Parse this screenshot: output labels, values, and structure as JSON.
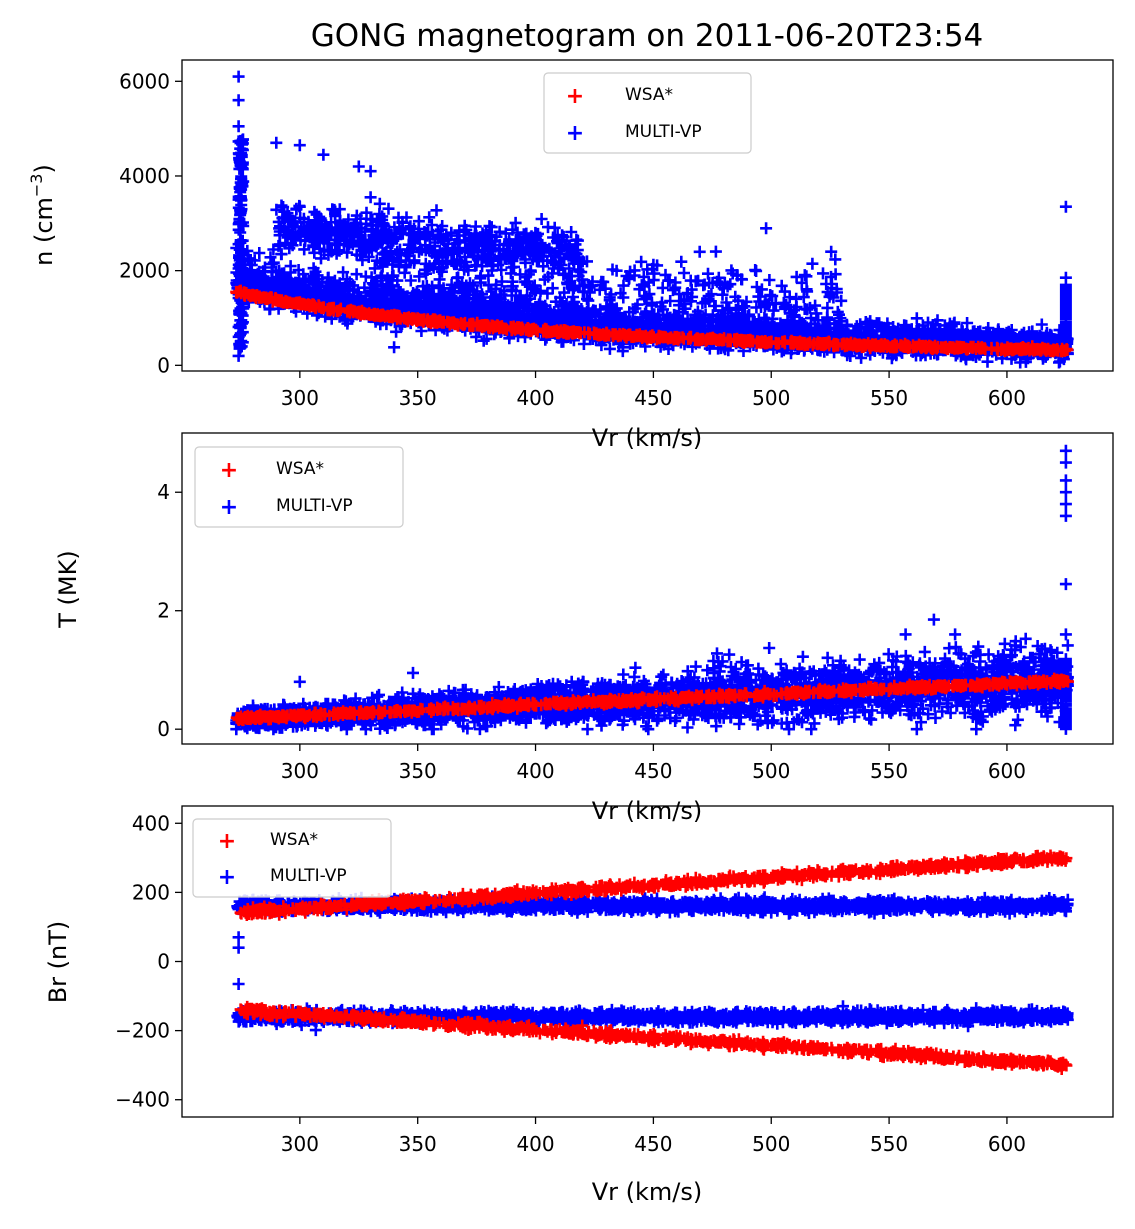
{
  "figure_title": "GONG magnetogram on 2011-06-20T23:54",
  "colors": {
    "wsa": "#ff0000",
    "multivp": "#0000ff"
  },
  "chart_data": [
    {
      "type": "scatter",
      "title": "GONG magnetogram on 2011-06-20T23:54",
      "xlabel": "Vr (km/s)",
      "ylabel_main": "n (cm",
      "ylabel_sup": "−3",
      "ylabel_close": ")",
      "xlim": [
        250,
        645
      ],
      "ylim": [
        -120,
        6450
      ],
      "xticks": [
        300,
        350,
        400,
        450,
        500,
        550,
        600
      ],
      "xtick_labels": [
        "300",
        "350",
        "400",
        "450",
        "500",
        "550",
        "600"
      ],
      "yticks": [
        0,
        2000,
        4000,
        6000
      ],
      "ytick_labels": [
        "0",
        "2000",
        "4000",
        "6000"
      ],
      "legend_position": "top-center",
      "series": [
        {
          "name": "WSA*",
          "model": "n = 1550 * (273/Vr)^1.9",
          "x_range": [
            273,
            626
          ],
          "values_sample": [
            [
              275,
              1550
            ],
            [
              350,
              980
            ],
            [
              450,
              600
            ],
            [
              550,
              410
            ],
            [
              625,
              300
            ]
          ]
        },
        {
          "name": "MULTI-VP",
          "outliers": [
            [
              274,
              6100
            ],
            [
              274,
              5600
            ],
            [
              274,
              5050
            ],
            [
              290,
              4700
            ],
            [
              300,
              4650
            ],
            [
              310,
              4450
            ],
            [
              325,
              4200
            ],
            [
              330,
              4100
            ],
            [
              330,
              3550
            ],
            [
              274,
              3500
            ],
            [
              300,
              3350
            ],
            [
              315,
              3250
            ],
            [
              400,
              2400
            ],
            [
              410,
              2350
            ],
            [
              463,
              1950
            ],
            [
              625,
              3350
            ],
            [
              625,
              1850
            ],
            [
              274,
              200
            ],
            [
              340,
              380
            ],
            [
              378,
              520
            ],
            [
              437,
              300
            ]
          ]
        }
      ]
    },
    {
      "type": "scatter",
      "xlabel": "Vr (km/s)",
      "ylabel": "T (MK)",
      "xlim": [
        250,
        645
      ],
      "ylim": [
        -0.25,
        5.0
      ],
      "xticks": [
        300,
        350,
        400,
        450,
        500,
        550,
        600
      ],
      "xtick_labels": [
        "300",
        "350",
        "400",
        "450",
        "500",
        "550",
        "600"
      ],
      "yticks": [
        0,
        2,
        4
      ],
      "ytick_labels": [
        "0",
        "2",
        "4"
      ],
      "legend_position": "top-left",
      "series": [
        {
          "name": "WSA*",
          "model": "T linear from 0.18 at Vr=273 to 0.82 at Vr=626",
          "values_sample": [
            [
              275,
              0.18
            ],
            [
              450,
              0.5
            ],
            [
              625,
              0.82
            ]
          ]
        },
        {
          "name": "MULTI-VP",
          "outliers": [
            [
              625,
              4.7
            ],
            [
              625,
              4.5
            ],
            [
              625,
              4.2
            ],
            [
              625,
              4.0
            ],
            [
              625,
              3.8
            ],
            [
              625,
              3.6
            ],
            [
              625,
              2.45
            ],
            [
              625,
              1.6
            ],
            [
              569,
              1.85
            ],
            [
              557,
              1.6
            ],
            [
              578,
              1.6
            ],
            [
              477,
              1.28
            ],
            [
              300,
              0.8
            ],
            [
              348,
              0.95
            ]
          ]
        }
      ]
    },
    {
      "type": "scatter",
      "xlabel": "Vr (km/s)",
      "ylabel": "Br (nT)",
      "xlim": [
        250,
        645
      ],
      "ylim": [
        -450,
        450
      ],
      "xticks": [
        300,
        350,
        400,
        450,
        500,
        550,
        600
      ],
      "xtick_labels": [
        "300",
        "350",
        "400",
        "450",
        "500",
        "550",
        "600"
      ],
      "yticks": [
        -400,
        -200,
        0,
        200,
        400
      ],
      "ytick_labels": [
        "−400",
        "−200",
        "0",
        "200",
        "400"
      ],
      "legend_position": "top-left",
      "series": [
        {
          "name": "WSA*",
          "model": "Br = ±(140 + (Vr-273)*0.455)",
          "values_sample": [
            [
              275,
              140
            ],
            [
              625,
              300
            ],
            [
              275,
              -140
            ],
            [
              625,
              -300
            ]
          ]
        },
        {
          "name": "MULTI-VP",
          "bands": [
            165,
            -160
          ],
          "outliers": [
            [
              274,
              70
            ],
            [
              274,
              40
            ],
            [
              274,
              -65
            ]
          ]
        }
      ]
    }
  ]
}
